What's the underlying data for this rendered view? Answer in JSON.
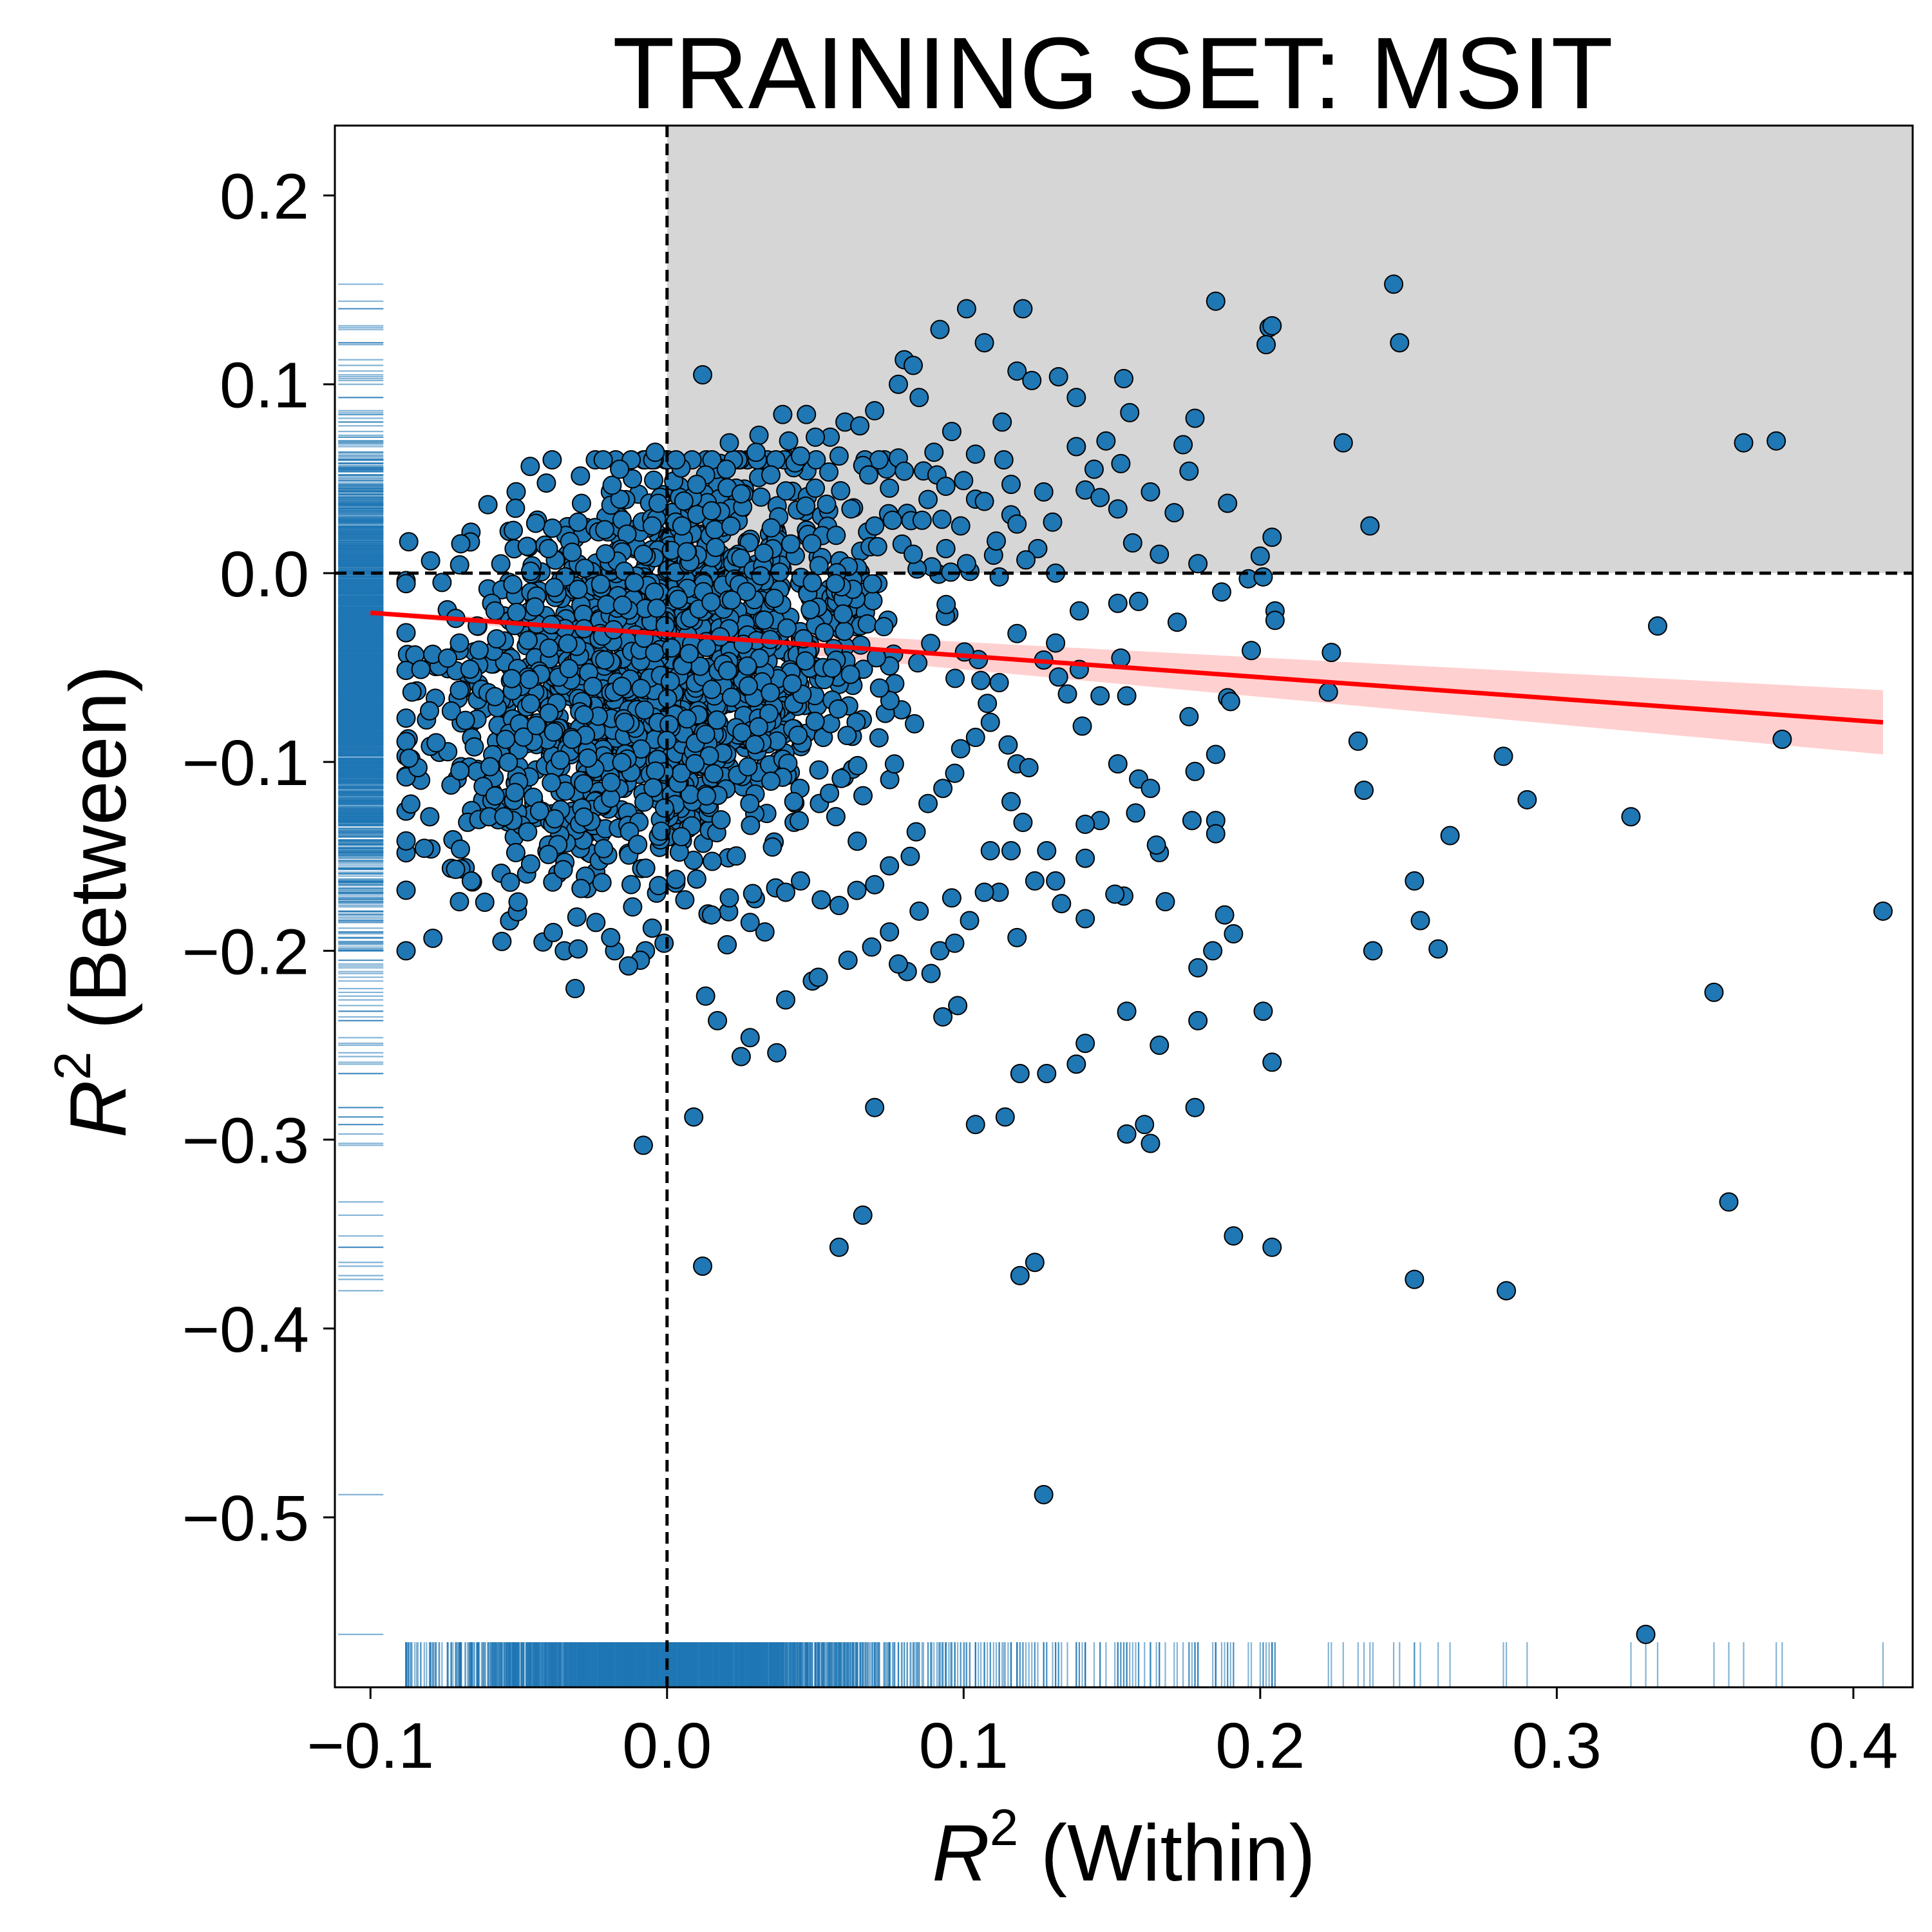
{
  "chart_data": {
    "type": "scatter",
    "title": "TRAINING SET: MSIT",
    "xlabel": {
      "symbol": "R",
      "superscript": "2",
      "rest": " (Within)"
    },
    "ylabel": {
      "symbol": "R",
      "superscript": "2",
      "rest": " (Between)"
    },
    "xlim": [
      -0.112,
      0.42
    ],
    "ylim": [
      -0.59,
      0.237
    ],
    "x_ticks": [
      -0.1,
      0.0,
      0.1,
      0.2,
      0.3,
      0.4
    ],
    "x_tick_labels": [
      "−0.1",
      "0.0",
      "0.1",
      "0.2",
      "0.3",
      "0.4"
    ],
    "y_ticks": [
      -0.5,
      -0.4,
      -0.3,
      -0.2,
      -0.1,
      0.0,
      0.1,
      0.2
    ],
    "y_tick_labels": [
      "−0.5",
      "−0.4",
      "−0.3",
      "−0.2",
      "−0.1",
      "0.0",
      "0.1",
      "0.2"
    ],
    "grid": false,
    "legend": "none",
    "reference_lines": {
      "x": 0.0,
      "y": 0.0,
      "style": "dashed"
    },
    "shaded_quadrant": {
      "x_from": 0.0,
      "y_from": 0.0,
      "color": "#d6d6d6"
    },
    "regression": {
      "x": [
        -0.1,
        0.41
      ],
      "y": [
        -0.021,
        -0.079
      ],
      "ci_upper_end": -0.062,
      "ci_lower_end": -0.096,
      "color": "#ff0000",
      "ci_color": "#ffd0d0"
    },
    "rug": {
      "color": "#1f77b4"
    },
    "marker_color": "#1f77b4",
    "marker_edge": "#000000",
    "cloud": {
      "n": 1900,
      "x_mean": 0.0,
      "x_sd": 0.036,
      "y_mean": -0.05,
      "y_sd": 0.052,
      "correlation": 0.25
    },
    "points": [
      [
        0.245,
        0.153
      ],
      [
        0.185,
        0.144
      ],
      [
        0.101,
        0.14
      ],
      [
        0.12,
        0.14
      ],
      [
        0.203,
        0.13
      ],
      [
        0.204,
        0.131
      ],
      [
        0.092,
        0.129
      ],
      [
        0.202,
        0.121
      ],
      [
        0.247,
        0.122
      ],
      [
        0.107,
        0.122
      ],
      [
        0.08,
        0.113
      ],
      [
        0.083,
        0.11
      ],
      [
        0.118,
        0.107
      ],
      [
        0.132,
        0.104
      ],
      [
        0.123,
        0.102
      ],
      [
        0.154,
        0.103
      ],
      [
        0.012,
        0.105
      ],
      [
        0.078,
        0.1
      ],
      [
        0.138,
        0.093
      ],
      [
        0.113,
        0.08
      ],
      [
        0.156,
        0.085
      ],
      [
        0.148,
        0.07
      ],
      [
        0.174,
        0.068
      ],
      [
        0.178,
        0.082
      ],
      [
        0.228,
        0.069
      ],
      [
        0.363,
        0.069
      ],
      [
        0.374,
        0.07
      ],
      [
        0.237,
        0.025
      ],
      [
        0.189,
        0.037
      ],
      [
        0.204,
        0.019
      ],
      [
        0.163,
        0.043
      ],
      [
        0.153,
        0.058
      ],
      [
        0.176,
        0.054
      ],
      [
        0.171,
        0.032
      ],
      [
        0.141,
        0.044
      ],
      [
        0.157,
        0.016
      ],
      [
        0.144,
        0.055
      ],
      [
        0.138,
        0.067
      ],
      [
        0.13,
        0.027
      ],
      [
        0.125,
        0.013
      ],
      [
        0.146,
        0.04
      ],
      [
        0.152,
        0.034
      ],
      [
        0.045,
        0.062
      ],
      [
        0.047,
        0.084
      ],
      [
        0.06,
        0.08
      ],
      [
        0.065,
        0.078
      ],
      [
        0.07,
        0.086
      ],
      [
        0.085,
        0.093
      ],
      [
        0.096,
        0.075
      ],
      [
        0.104,
        0.063
      ],
      [
        0.091,
        0.052
      ],
      [
        0.078,
        0.061
      ],
      [
        0.066,
        0.057
      ],
      [
        0.055,
        0.072
      ],
      [
        0.039,
        0.084
      ],
      [
        0.031,
        0.073
      ],
      [
        0.021,
        0.069
      ],
      [
        0.013,
        0.052
      ],
      [
        0.088,
        0.039
      ],
      [
        0.099,
        0.025
      ],
      [
        0.107,
        0.038
      ],
      [
        0.111,
        0.017
      ],
      [
        0.094,
        0.013
      ],
      [
        0.076,
        0.028
      ],
      [
        0.062,
        0.034
      ],
      [
        0.05,
        0.045
      ],
      [
        0.035,
        0.052
      ],
      [
        0.025,
        0.042
      ],
      [
        0.015,
        0.033
      ],
      [
        0.005,
        0.025
      ],
      [
        0.118,
        0.026
      ],
      [
        0.121,
        0.007
      ],
      [
        0.131,
        0.0
      ],
      [
        0.112,
        -0.002
      ],
      [
        0.101,
        0.005
      ],
      [
        0.083,
        0.01
      ],
      [
        0.071,
        0.014
      ],
      [
        0.057,
        0.02
      ],
      [
        0.179,
        0.005
      ],
      [
        0.187,
        -0.01
      ],
      [
        0.196,
        -0.003
      ],
      [
        0.172,
        -0.026
      ],
      [
        0.152,
        -0.016
      ],
      [
        0.139,
        -0.02
      ],
      [
        0.159,
        -0.015
      ],
      [
        0.166,
        0.01
      ],
      [
        0.2,
        0.009
      ],
      [
        0.201,
        -0.002
      ],
      [
        0.205,
        -0.02
      ],
      [
        0.205,
        -0.025
      ],
      [
        0.223,
        -0.063
      ],
      [
        0.224,
        -0.042
      ],
      [
        0.233,
        -0.089
      ],
      [
        0.334,
        -0.028
      ],
      [
        0.376,
        -0.088
      ],
      [
        0.282,
        -0.097
      ],
      [
        0.29,
        -0.12
      ],
      [
        0.325,
        -0.129
      ],
      [
        0.264,
        -0.139
      ],
      [
        0.252,
        -0.163
      ],
      [
        0.254,
        -0.184
      ],
      [
        0.26,
        -0.199
      ],
      [
        0.238,
        -0.2
      ],
      [
        0.235,
        -0.115
      ],
      [
        0.41,
        -0.179
      ],
      [
        0.353,
        -0.222
      ],
      [
        0.358,
        -0.333
      ],
      [
        0.252,
        -0.374
      ],
      [
        0.283,
        -0.38
      ],
      [
        0.33,
        -0.562
      ],
      [
        0.204,
        -0.259
      ],
      [
        0.201,
        -0.232
      ],
      [
        0.204,
        -0.357
      ],
      [
        0.191,
        -0.351
      ],
      [
        0.178,
        -0.283
      ],
      [
        0.179,
        -0.237
      ],
      [
        0.191,
        -0.191
      ],
      [
        0.188,
        -0.181
      ],
      [
        0.184,
        -0.2
      ],
      [
        0.179,
        -0.209
      ],
      [
        0.177,
        -0.131
      ],
      [
        0.185,
        -0.131
      ],
      [
        0.185,
        -0.138
      ],
      [
        0.178,
        -0.105
      ],
      [
        0.185,
        -0.096
      ],
      [
        0.189,
        -0.066
      ],
      [
        0.197,
        -0.041
      ],
      [
        0.176,
        -0.076
      ],
      [
        0.19,
        -0.068
      ],
      [
        0.166,
        -0.148
      ],
      [
        0.168,
        -0.174
      ],
      [
        0.166,
        -0.25
      ],
      [
        0.163,
        -0.302
      ],
      [
        0.161,
        -0.292
      ],
      [
        0.155,
        -0.297
      ],
      [
        0.155,
        -0.232
      ],
      [
        0.154,
        -0.171
      ],
      [
        0.151,
        -0.17
      ],
      [
        0.152,
        -0.101
      ],
      [
        0.158,
        -0.127
      ],
      [
        0.159,
        -0.109
      ],
      [
        0.163,
        -0.114
      ],
      [
        0.165,
        -0.144
      ],
      [
        0.146,
        -0.131
      ],
      [
        0.141,
        -0.133
      ],
      [
        0.141,
        -0.151
      ],
      [
        0.141,
        -0.183
      ],
      [
        0.141,
        -0.249
      ],
      [
        0.138,
        -0.26
      ],
      [
        0.128,
        -0.265
      ],
      [
        0.119,
        -0.265
      ],
      [
        0.114,
        -0.288
      ],
      [
        0.104,
        -0.292
      ],
      [
        0.127,
        -0.488
      ],
      [
        0.124,
        -0.365
      ],
      [
        0.119,
        -0.372
      ],
      [
        0.133,
        -0.175
      ],
      [
        0.131,
        -0.163
      ],
      [
        0.128,
        -0.147
      ],
      [
        0.124,
        -0.163
      ],
      [
        0.118,
        -0.193
      ],
      [
        0.112,
        -0.169
      ],
      [
        0.107,
        -0.169
      ],
      [
        0.102,
        -0.184
      ],
      [
        0.098,
        -0.229
      ],
      [
        0.093,
        -0.235
      ],
      [
        0.089,
        -0.212
      ],
      [
        0.081,
        -0.211
      ],
      [
        0.078,
        -0.207
      ],
      [
        0.07,
        -0.283
      ],
      [
        0.066,
        -0.34
      ],
      [
        0.058,
        -0.357
      ],
      [
        0.012,
        -0.367
      ],
      [
        0.009,
        -0.288
      ],
      [
        -0.008,
        -0.303
      ],
      [
        -0.031,
        -0.22
      ],
      [
        -0.03,
        -0.199
      ],
      [
        0.013,
        -0.224
      ],
      [
        0.017,
        -0.237
      ],
      [
        0.028,
        -0.246
      ],
      [
        0.025,
        -0.256
      ],
      [
        0.037,
        -0.254
      ],
      [
        0.04,
        -0.226
      ],
      [
        0.049,
        -0.216
      ],
      [
        0.051,
        -0.214
      ],
      [
        0.061,
        -0.205
      ],
      [
        0.069,
        -0.198
      ],
      [
        0.075,
        -0.19
      ],
      [
        0.085,
        -0.179
      ],
      [
        0.092,
        -0.2
      ],
      [
        0.097,
        -0.196
      ],
      [
        0.096,
        -0.172
      ],
      [
        0.109,
        -0.147
      ],
      [
        0.116,
        -0.147
      ],
      [
        0.12,
        -0.132
      ],
      [
        0.116,
        -0.121
      ],
      [
        0.118,
        -0.101
      ],
      [
        0.115,
        -0.091
      ],
      [
        0.122,
        -0.103
      ],
      [
        0.14,
        -0.081
      ],
      [
        0.139,
        -0.051
      ],
      [
        0.146,
        -0.065
      ],
      [
        0.155,
        -0.065
      ],
      [
        0.153,
        -0.045
      ],
      [
        0.131,
        -0.037
      ],
      [
        0.135,
        -0.064
      ],
      [
        0.132,
        -0.055
      ],
      [
        0.127,
        -0.046
      ],
      [
        0.118,
        -0.032
      ],
      [
        0.109,
        -0.079
      ],
      [
        0.104,
        -0.087
      ],
      [
        0.108,
        -0.069
      ],
      [
        0.112,
        -0.058
      ],
      [
        0.099,
        -0.093
      ],
      [
        0.097,
        -0.106
      ],
      [
        0.093,
        -0.114
      ],
      [
        0.088,
        -0.122
      ],
      [
        0.084,
        -0.137
      ],
      [
        0.082,
        -0.15
      ],
      [
        0.075,
        -0.155
      ],
      [
        0.07,
        -0.165
      ],
      [
        0.064,
        -0.168
      ],
      [
        0.058,
        -0.176
      ],
      [
        0.052,
        -0.173
      ],
      [
        0.045,
        -0.163
      ],
      [
        0.04,
        -0.169
      ],
      [
        0.033,
        -0.19
      ],
      [
        0.028,
        -0.185
      ],
      [
        0.021,
        -0.172
      ],
      [
        0.015,
        -0.181
      ],
      [
        0.01,
        -0.162
      ],
      [
        0.006,
        -0.173
      ],
      [
        -0.001,
        -0.196
      ],
      [
        -0.005,
        -0.188
      ],
      [
        -0.009,
        -0.205
      ],
      [
        -0.013,
        -0.208
      ],
      [
        -0.019,
        -0.193
      ],
      [
        -0.024,
        -0.185
      ],
      [
        -0.029,
        -0.167
      ],
      [
        -0.035,
        -0.157
      ],
      [
        -0.04,
        -0.149
      ],
      [
        -0.046,
        -0.154
      ],
      [
        -0.052,
        -0.131
      ],
      [
        -0.06,
        -0.129
      ],
      [
        -0.066,
        -0.163
      ],
      [
        -0.07,
        -0.174
      ],
      [
        -0.08,
        -0.129
      ],
      [
        -0.084,
        -0.103
      ],
      [
        -0.087,
        -0.098
      ],
      [
        -0.086,
        -0.063
      ],
      [
        -0.083,
        -0.051
      ],
      [
        -0.079,
        -0.043
      ],
      [
        -0.074,
        -0.045
      ],
      [
        -0.07,
        -0.062
      ],
      [
        -0.068,
        -0.078
      ],
      [
        -0.065,
        -0.092
      ],
      [
        -0.062,
        -0.113
      ],
      [
        -0.058,
        -0.118
      ],
      [
        -0.055,
        -0.129
      ],
      [
        -0.051,
        -0.148
      ],
      [
        -0.047,
        -0.137
      ],
      [
        -0.043,
        -0.126
      ],
      [
        -0.039,
        -0.111
      ],
      [
        -0.036,
        -0.099
      ],
      [
        -0.032,
        -0.088
      ],
      [
        -0.028,
        -0.075
      ],
      [
        -0.025,
        -0.06
      ],
      [
        -0.021,
        -0.046
      ],
      [
        -0.018,
        -0.03
      ],
      [
        -0.015,
        -0.017
      ],
      [
        -0.011,
        -0.005
      ],
      [
        -0.008,
        0.01
      ],
      [
        -0.005,
        0.025
      ],
      [
        -0.003,
        0.037
      ],
      [
        -0.004,
        0.064
      ],
      [
        -0.016,
        0.055
      ],
      [
        -0.021,
        0.023
      ],
      [
        -0.03,
        0.027
      ],
      [
        -0.04,
        0.013
      ],
      [
        -0.046,
        0.001
      ],
      [
        -0.052,
        -0.006
      ],
      [
        -0.058,
        -0.02
      ],
      [
        -0.064,
        -0.028
      ],
      [
        -0.07,
        -0.037
      ],
      [
        0.003,
        0.06
      ],
      [
        0.01,
        0.047
      ],
      [
        0.02,
        0.055
      ],
      [
        0.03,
        0.064
      ],
      [
        0.041,
        0.07
      ],
      [
        0.05,
        0.072
      ],
      [
        0.058,
        0.062
      ],
      [
        0.08,
        0.054
      ],
      [
        0.09,
        0.064
      ],
      [
        0.094,
        0.046
      ],
      [
        0.086,
        0.028
      ],
      [
        0.075,
        0.045
      ],
      [
        0.068,
        0.052
      ],
      [
        0.1,
        0.049
      ],
      [
        0.116,
        0.047
      ],
      [
        0.127,
        0.043
      ]
    ]
  }
}
